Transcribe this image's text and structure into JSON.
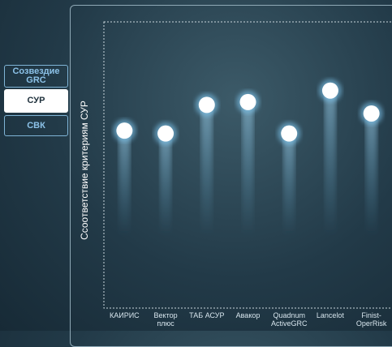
{
  "tabs": [
    "Созвездие GRC",
    "СУР",
    "СВК"
  ],
  "chart_data": {
    "type": "dot",
    "y_label": "Ссоответствие критериям СУР",
    "categories": [
      "КАИРИС",
      "Вектор плюс",
      "ТАБ АСУР",
      "Авакор",
      "Quadnum ActiveGRC",
      "Lancelot",
      "Finist-OperRisk"
    ],
    "values": [
      62,
      61,
      71,
      72,
      61,
      76,
      68
    ],
    "color": "#ffffff",
    "ylim": [
      0,
      100
    ]
  }
}
